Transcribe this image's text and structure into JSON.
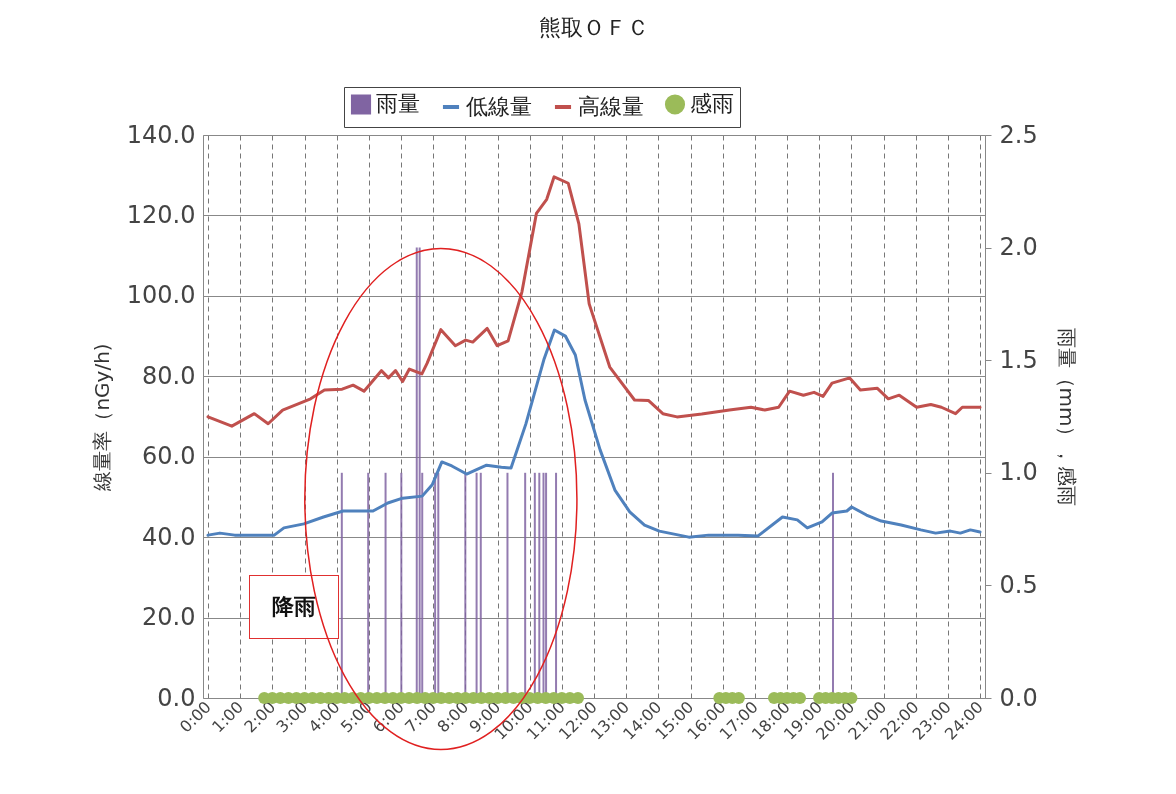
{
  "chart_data": {
    "type": "line",
    "title": "熊取ＯＦＣ",
    "ylabel": "線量率（nGy/h)",
    "y2label": "雨量（mm），感雨",
    "xlim": [
      0,
      24
    ],
    "xticks": [
      {
        "value": 0,
        "label": "0:00"
      },
      {
        "value": 1,
        "label": "1:00"
      },
      {
        "value": 2,
        "label": "2:00"
      },
      {
        "value": 3,
        "label": "3:00"
      },
      {
        "value": 4,
        "label": "4:00"
      },
      {
        "value": 5,
        "label": "5:00"
      },
      {
        "value": 6,
        "label": "6:00"
      },
      {
        "value": 7,
        "label": "7:00"
      },
      {
        "value": 8,
        "label": "8:00"
      },
      {
        "value": 9,
        "label": "9:00"
      },
      {
        "value": 10,
        "label": "10:00"
      },
      {
        "value": 11,
        "label": "11:00"
      },
      {
        "value": 12,
        "label": "12:00"
      },
      {
        "value": 13,
        "label": "13:00"
      },
      {
        "value": 14,
        "label": "14:00"
      },
      {
        "value": 15,
        "label": "15:00"
      },
      {
        "value": 16,
        "label": "16:00"
      },
      {
        "value": 17,
        "label": "17:00"
      },
      {
        "value": 18,
        "label": "18:00"
      },
      {
        "value": 19,
        "label": "19:00"
      },
      {
        "value": 20,
        "label": "20:00"
      },
      {
        "value": 21,
        "label": "21:00"
      },
      {
        "value": 22,
        "label": "22:00"
      },
      {
        "value": 23,
        "label": "23:00"
      },
      {
        "value": 24,
        "label": "24:00"
      }
    ],
    "ylim": [
      0,
      140
    ],
    "yticks": [
      {
        "value": 0,
        "label": "0.0"
      },
      {
        "value": 20,
        "label": "20.0"
      },
      {
        "value": 40,
        "label": "40.0"
      },
      {
        "value": 60,
        "label": "60.0"
      },
      {
        "value": 80,
        "label": "80.0"
      },
      {
        "value": 100,
        "label": "100.0"
      },
      {
        "value": 120,
        "label": "120.0"
      },
      {
        "value": 140,
        "label": "140.0"
      }
    ],
    "y2lim": [
      0,
      2.5
    ],
    "y2ticks": [
      {
        "value": 0,
        "label": "0.0"
      },
      {
        "value": 0.5,
        "label": "0.5"
      },
      {
        "value": 1,
        "label": "1.0"
      },
      {
        "value": 1.5,
        "label": "1.5"
      },
      {
        "value": 2,
        "label": "2.0"
      },
      {
        "value": 2.5,
        "label": "2.5"
      }
    ],
    "grid": true,
    "legend": "top",
    "annotations": [
      "降雨"
    ],
    "series": [
      {
        "name": "雨量",
        "type": "bar",
        "axis": "y2",
        "color": "#8064a2",
        "x": [
          4.16,
          4.98,
          5.52,
          6.01,
          6.49,
          6.58,
          6.66,
          7.06,
          7.16,
          8.0,
          8.35,
          8.48,
          9.31,
          9.86,
          10.16,
          10.3,
          10.43,
          10.51,
          10.82,
          19.43
        ],
        "values": [
          1.0,
          1.0,
          1.0,
          1.0,
          2.0,
          2.0,
          1.0,
          1.0,
          1.0,
          1.0,
          1.0,
          1.0,
          1.0,
          1.0,
          1.0,
          1.0,
          1.0,
          1.0,
          1.0,
          1.0
        ]
      },
      {
        "name": "低線量",
        "color": "#4f81bd",
        "x": [
          0,
          0.37,
          0.83,
          2.06,
          2.36,
          2.98,
          3.59,
          4.2,
          5.13,
          5.59,
          6.05,
          6.66,
          6.97,
          7.27,
          7.58,
          8.04,
          8.66,
          9.12,
          9.42,
          9.88,
          10.44,
          10.77,
          11.11,
          11.42,
          11.72,
          12.19,
          12.65,
          13.11,
          13.57,
          14.03,
          14.95,
          15.56,
          16.48,
          17.1,
          17.86,
          18.32,
          18.63,
          19.09,
          19.4,
          19.86,
          20.01,
          20.47,
          20.93,
          21.55,
          22.16,
          22.62,
          23.08,
          23.39,
          23.7,
          24
        ],
        "values": [
          40.5,
          41.0,
          40.5,
          40.5,
          42.3,
          43.3,
          45.0,
          46.5,
          46.5,
          48.5,
          49.7,
          50.2,
          53,
          58.7,
          57.7,
          55.7,
          57.9,
          57.4,
          57.2,
          68.1,
          84.1,
          91.5,
          90,
          85.3,
          74.1,
          61.7,
          51.7,
          46.3,
          43,
          41.5,
          40,
          40.5,
          40.5,
          40.3,
          45,
          44.3,
          42.3,
          43.8,
          46,
          46.5,
          47.5,
          45.5,
          44,
          43,
          41.8,
          41,
          41.5,
          41,
          41.8,
          41.3
        ]
      },
      {
        "name": "高線量",
        "color": "#c0504d",
        "x": [
          0,
          0.74,
          1.44,
          1.87,
          2.32,
          3.19,
          3.62,
          4.17,
          4.51,
          4.85,
          5.39,
          5.61,
          5.83,
          6.05,
          6.26,
          6.65,
          6.81,
          7.24,
          7.69,
          8.01,
          8.23,
          8.68,
          8.99,
          9.33,
          9.76,
          10.21,
          10.53,
          10.76,
          11.2,
          11.53,
          11.85,
          12.49,
          13.26,
          13.69,
          14.14,
          14.58,
          15.35,
          16.21,
          16.88,
          17.31,
          17.74,
          18.08,
          18.51,
          18.84,
          19.12,
          19.4,
          19.95,
          20.28,
          20.81,
          21.15,
          21.49,
          22.03,
          22.47,
          22.8,
          23.24,
          23.45,
          24
        ],
        "values": [
          69.9,
          67.6,
          70.7,
          68.2,
          71.6,
          74.4,
          76.6,
          76.8,
          77.8,
          76.3,
          81.4,
          79.6,
          81.4,
          78.7,
          81.8,
          80.6,
          83.2,
          91.6,
          87.6,
          89,
          88.5,
          91.9,
          87.6,
          88.8,
          101,
          120.5,
          124,
          129.6,
          128,
          117.9,
          98,
          82.3,
          74.1,
          74,
          70.7,
          69.9,
          70.6,
          71.6,
          72.3,
          71.6,
          72.3,
          76.3,
          75.3,
          76,
          75,
          78.3,
          79.6,
          76.6,
          77,
          74.4,
          75.3,
          72.3,
          73,
          72.3,
          70.7,
          72.3,
          72.3
        ]
      },
      {
        "name": "感雨",
        "type": "scatter",
        "axis": "y2",
        "color": "#9bbb59",
        "marker": "circle",
        "x": [
          1.75,
          2,
          2.25,
          2.5,
          2.75,
          3,
          3.25,
          3.5,
          3.75,
          4,
          4.25,
          4.5,
          4.75,
          5,
          5.25,
          5.5,
          5.75,
          6,
          6.25,
          6.5,
          6.75,
          7,
          7.25,
          7.5,
          7.75,
          8,
          8.25,
          8.5,
          8.75,
          9,
          9.25,
          9.5,
          9.75,
          10,
          10.25,
          10.5,
          10.75,
          11,
          11.25,
          11.5,
          15.9,
          16.1,
          16.3,
          16.5,
          17.6,
          17.8,
          18.0,
          18.2,
          18.4,
          19.0,
          19.2,
          19.4,
          19.6,
          19.8,
          20.0
        ],
        "values": [
          0,
          0,
          0,
          0,
          0,
          0,
          0,
          0,
          0,
          0,
          0,
          0,
          0,
          0,
          0,
          0,
          0,
          0,
          0,
          0,
          0,
          0,
          0,
          0,
          0,
          0,
          0,
          0,
          0,
          0,
          0,
          0,
          0,
          0,
          0,
          0,
          0,
          0,
          0,
          0,
          0,
          0,
          0,
          0,
          0,
          0,
          0,
          0,
          0,
          0,
          0,
          0,
          0,
          0,
          0
        ]
      }
    ]
  }
}
